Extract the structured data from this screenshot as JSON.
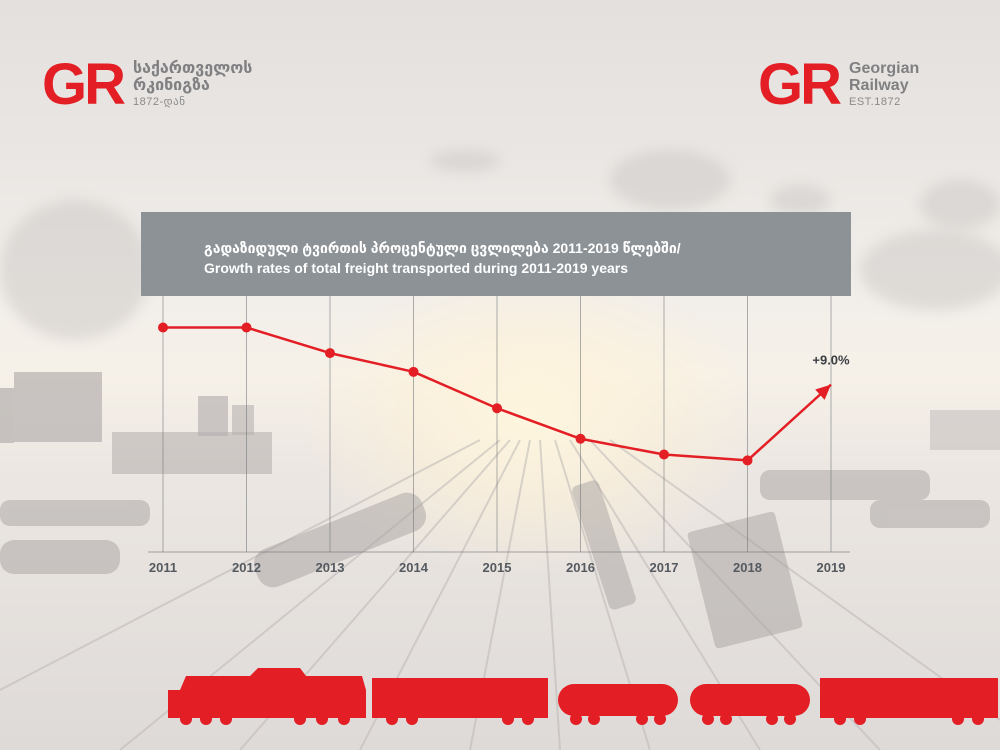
{
  "logo_left": {
    "mark": "GR",
    "line1": "საქართველოს",
    "line2": "რკინიგზა",
    "line3": "1872-დან"
  },
  "logo_right": {
    "mark": "GR",
    "line1": "Georgian",
    "line2": "Railway",
    "line3": "EST.1872"
  },
  "colors": {
    "accent": "#e31e24",
    "title_box": "#8c9296",
    "gridline": "#6e7378"
  },
  "chart_data": {
    "type": "line",
    "title": "გადაზიდული ტვირთის პროცენტული ცვლილება 2011-2019 წლებში/",
    "subtitle": "Growth rates of total freight transported during 2011-2019 years",
    "categories": [
      "2011",
      "2012",
      "2013",
      "2014",
      "2015",
      "2016",
      "2017",
      "2018",
      "2019"
    ],
    "series": [
      {
        "values": [
          14.8,
          14.8,
          12.2,
          10.3,
          6.6,
          3.5,
          1.9,
          1.3,
          9.0
        ]
      }
    ],
    "annotation": "+9.0%",
    "ylim": [
      -8,
      18
    ],
    "grid": "vertical",
    "legend": "none"
  },
  "icons": {
    "train_silhouette": "train-silhouette-icon"
  }
}
